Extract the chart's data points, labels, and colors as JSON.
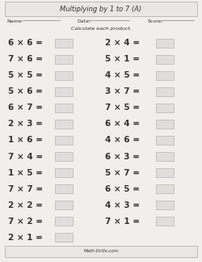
{
  "title": "Multiplying by 1 to 7 (A)",
  "subtitle": "Calculate each product.",
  "name_label": "Name:",
  "date_label": "Date:",
  "score_label": "Score:",
  "footer": "Math-Drills.com",
  "left_problems": [
    "6 × 6 =",
    "7 × 6 =",
    "5 × 5 =",
    "5 × 6 =",
    "6 × 7 =",
    "2 × 3 =",
    "1 × 6 =",
    "7 × 4 =",
    "1 × 5 =",
    "7 × 7 =",
    "2 × 2 =",
    "7 × 2 =",
    "2 × 1 ="
  ],
  "right_problems": [
    "2 × 4 =",
    "5 × 1 =",
    "4 × 5 =",
    "3 × 7 =",
    "7 × 5 =",
    "6 × 4 =",
    "4 × 6 =",
    "6 × 3 =",
    "5 × 7 =",
    "6 × 5 =",
    "4 × 3 =",
    "7 × 1 ="
  ],
  "bg_color": "#f0efec",
  "title_box_color": "#e8e7e3",
  "footer_box_color": "#e8e7e3",
  "text_color": "#333333",
  "problem_fontsize": 7.5,
  "title_fontsize": 6.0,
  "label_fontsize": 4.5,
  "subtitle_fontsize": 4.5,
  "footer_fontsize": 4.0,
  "border_color": "#aaaaaa",
  "answer_box_color": "#e0dedd"
}
